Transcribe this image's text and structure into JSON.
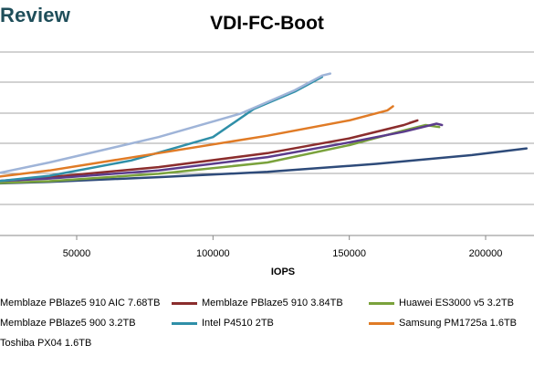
{
  "brand": {
    "text": "Review"
  },
  "chart_data": {
    "type": "line",
    "title": "VDI-FC-Boot",
    "xlabel": "IOPS",
    "ylabel": "",
    "xlim": [
      0,
      215000
    ],
    "x_ticks": [
      50000,
      100000,
      150000,
      200000
    ],
    "y_grid_count": 7,
    "grid": true,
    "legend_position": "bottom",
    "series": [
      {
        "name": "Memblaze PBlaze5 910 AIC 7.68TB",
        "color": "#2e4b7a",
        "points": [
          [
            0,
            178
          ],
          [
            40000,
            183
          ],
          [
            80000,
            190
          ],
          [
            120000,
            198
          ],
          [
            160000,
            210
          ],
          [
            195000,
            223
          ],
          [
            215000,
            233
          ]
        ]
      },
      {
        "name": "Memblaze PBlaze5 910 3.84TB",
        "color": "#8b2d2d",
        "points": [
          [
            0,
            178
          ],
          [
            40000,
            190
          ],
          [
            80000,
            205
          ],
          [
            120000,
            226
          ],
          [
            150000,
            248
          ],
          [
            170000,
            268
          ],
          [
            175000,
            275
          ],
          [
            172000,
            271
          ]
        ]
      },
      {
        "name": "Huawei ES3000 v5 3.2TB",
        "color": "#7aa23c",
        "points": [
          [
            0,
            178
          ],
          [
            40000,
            184
          ],
          [
            80000,
            195
          ],
          [
            120000,
            212
          ],
          [
            150000,
            238
          ],
          [
            170000,
            260
          ],
          [
            178000,
            268
          ],
          [
            183000,
            265
          ]
        ]
      },
      {
        "name": "Memblaze PBlaze5 900 3.2TB",
        "color": "#5b3c8c",
        "points": [
          [
            0,
            180
          ],
          [
            40000,
            188
          ],
          [
            80000,
            200
          ],
          [
            120000,
            220
          ],
          [
            150000,
            242
          ],
          [
            170000,
            258
          ],
          [
            182000,
            270
          ],
          [
            184000,
            268
          ]
        ]
      },
      {
        "name": "Intel P4510 2TB",
        "color": "#2f8fa8",
        "points": [
          [
            0,
            175
          ],
          [
            40000,
            192
          ],
          [
            70000,
            215
          ],
          [
            100000,
            250
          ],
          [
            115000,
            292
          ],
          [
            130000,
            318
          ],
          [
            140000,
            340
          ]
        ]
      },
      {
        "name": "Samsung PM1725a 1.6TB",
        "color": "#e07b26",
        "points": [
          [
            0,
            180
          ],
          [
            40000,
            200
          ],
          [
            80000,
            226
          ],
          [
            120000,
            252
          ],
          [
            150000,
            275
          ],
          [
            164000,
            290
          ],
          [
            166000,
            296
          ]
        ]
      },
      {
        "name": "Toshiba PX04 1.6TB",
        "color": "#9fb4d8",
        "points": [
          [
            0,
            178
          ],
          [
            40000,
            212
          ],
          [
            80000,
            250
          ],
          [
            110000,
            285
          ],
          [
            130000,
            320
          ],
          [
            140000,
            342
          ],
          [
            143000,
            345
          ]
        ]
      }
    ]
  }
}
